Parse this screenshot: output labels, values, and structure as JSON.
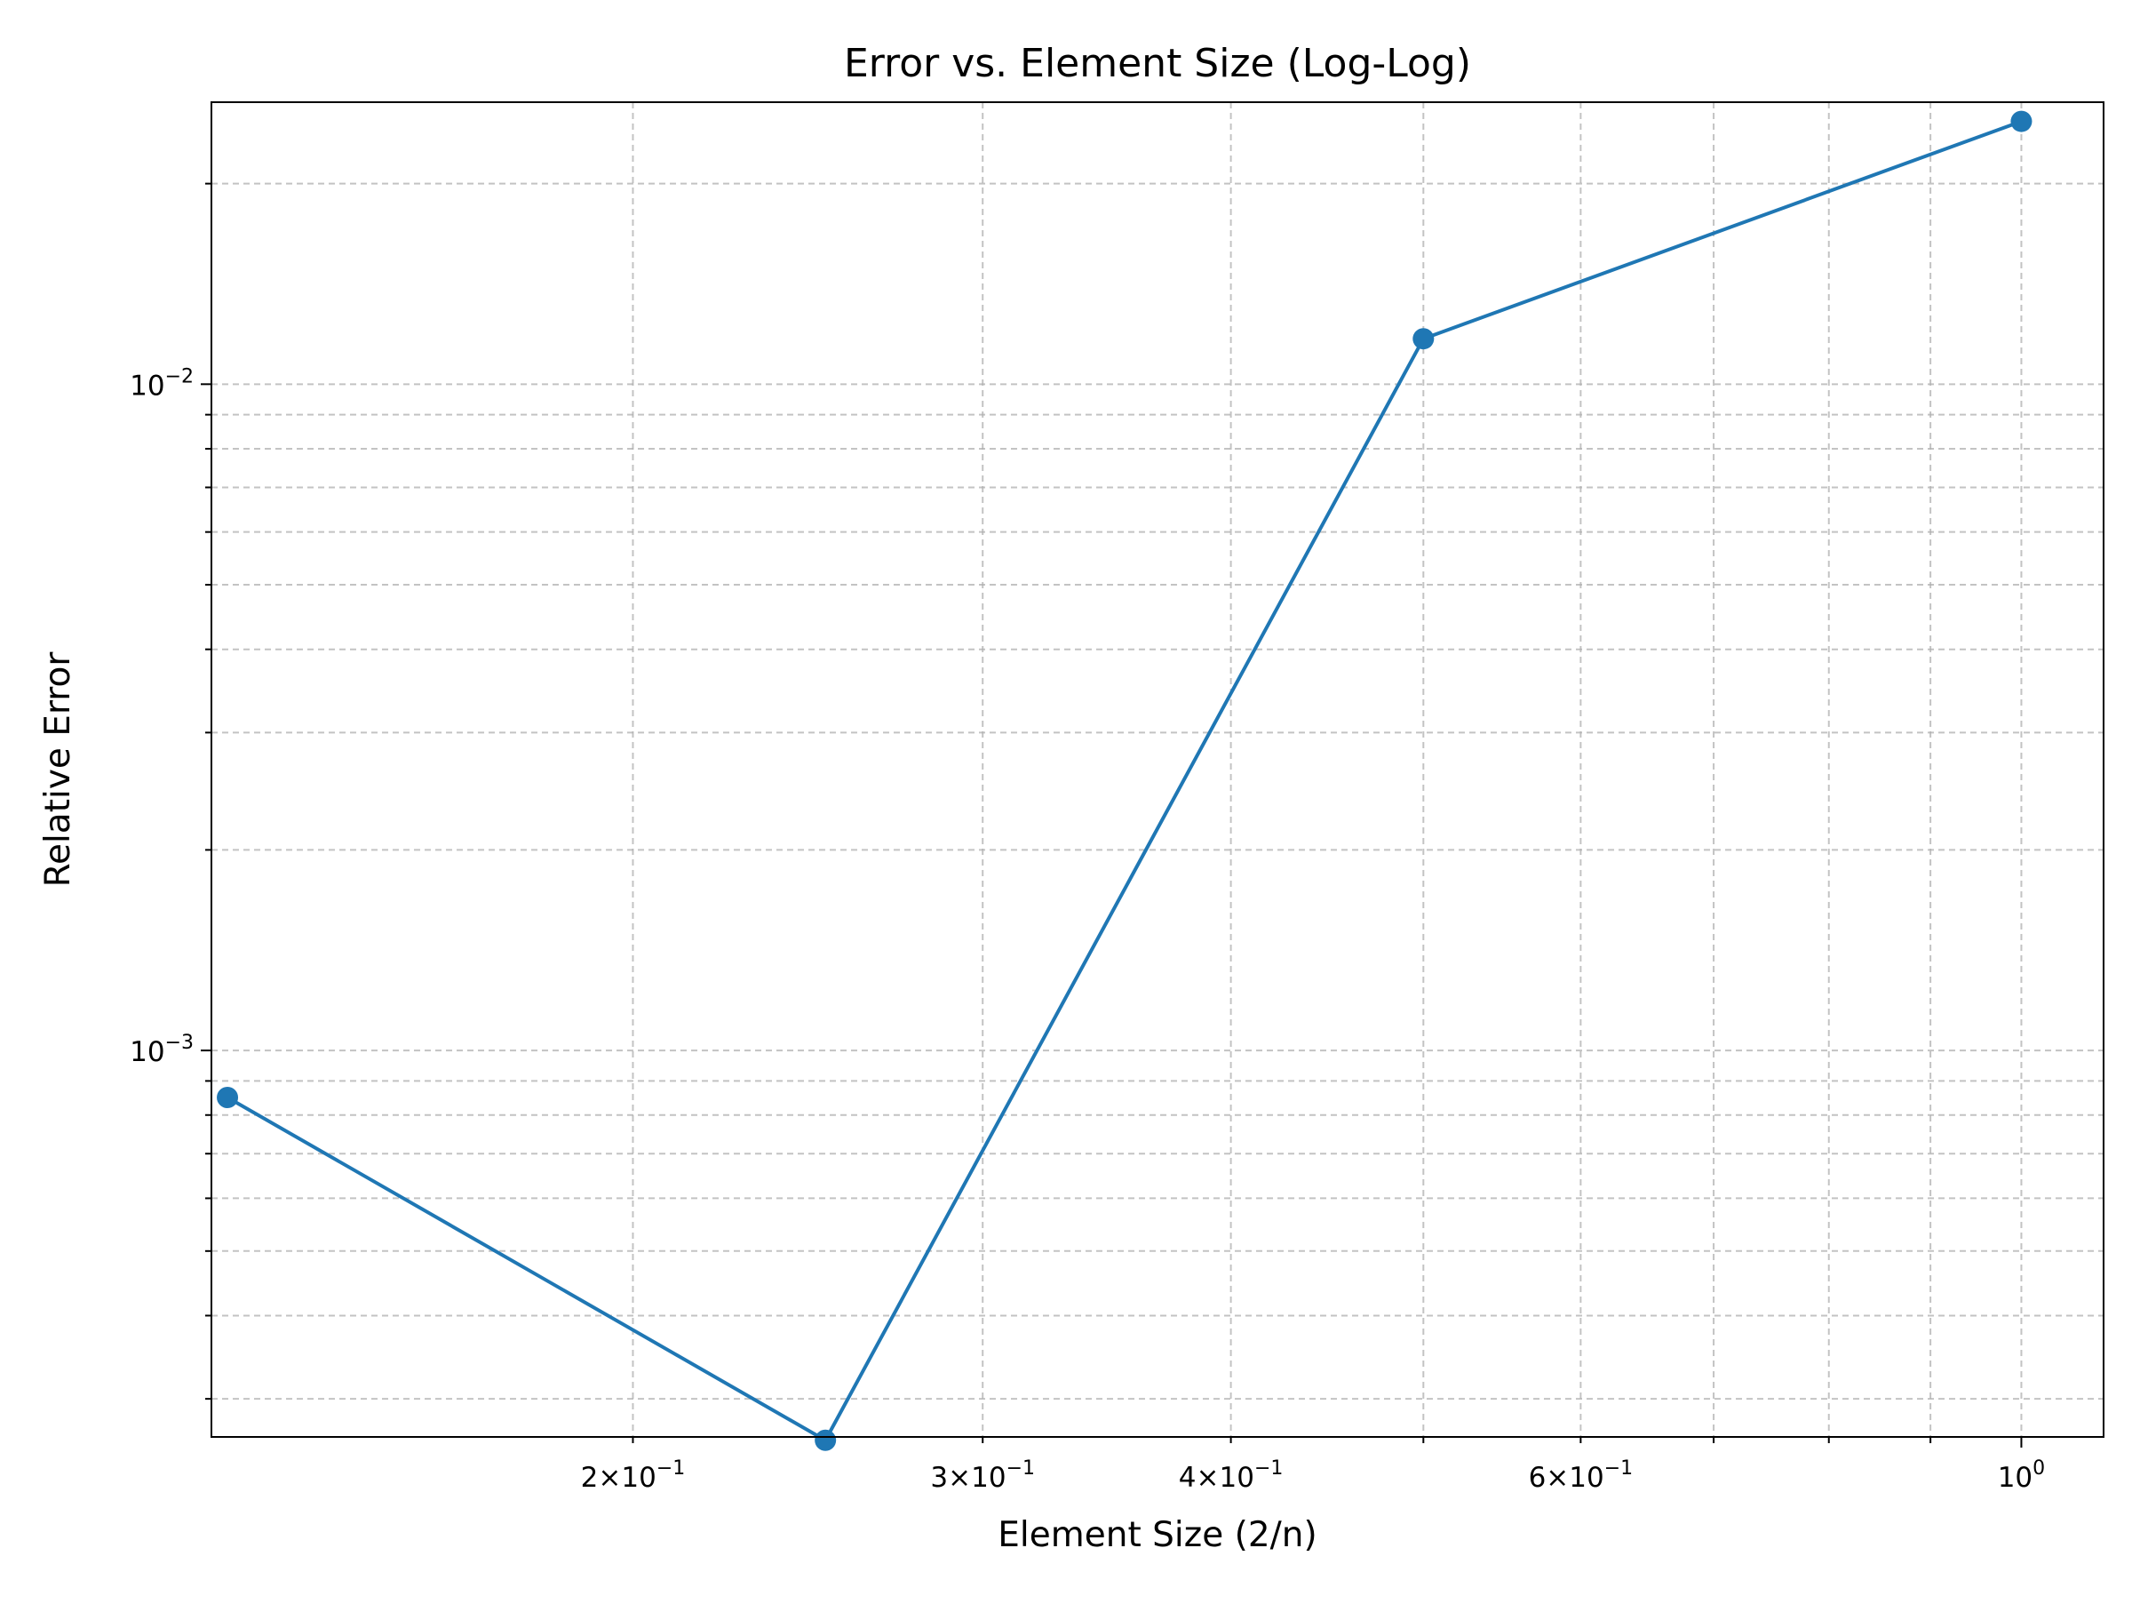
{
  "chart_data": {
    "type": "line",
    "title": "Error vs. Element Size (Log-Log)",
    "xlabel": "Element Size (2/n)",
    "ylabel": "Relative Error",
    "xscale": "log",
    "yscale": "log",
    "xlim": [
      0.1227,
      1.1
    ],
    "ylim": [
      0.000263,
      0.0265
    ],
    "grid": true,
    "grid_style": "dashed",
    "legend": "none",
    "line_color": "#1f77b4",
    "marker": "circle",
    "x_ticks": [
      {
        "mantissa": "2",
        "exponent": "−1",
        "value": 0.2
      },
      {
        "mantissa": "3",
        "exponent": "−1",
        "value": 0.3
      },
      {
        "mantissa": "4",
        "exponent": "−1",
        "value": 0.4
      },
      {
        "mantissa": "6",
        "exponent": "−1",
        "value": 0.6
      },
      {
        "mantissa": "",
        "exponent": "0",
        "value": 1.0
      }
    ],
    "y_ticks": [
      {
        "mantissa": "",
        "exponent": "−3",
        "value": 0.001
      },
      {
        "mantissa": "",
        "exponent": "−2",
        "value": 0.01
      }
    ],
    "series": [
      {
        "x": [
          0.125,
          0.25,
          0.5,
          1.0
        ],
        "y": [
          0.00085,
          0.00026,
          0.0117,
          0.0248
        ]
      }
    ]
  }
}
